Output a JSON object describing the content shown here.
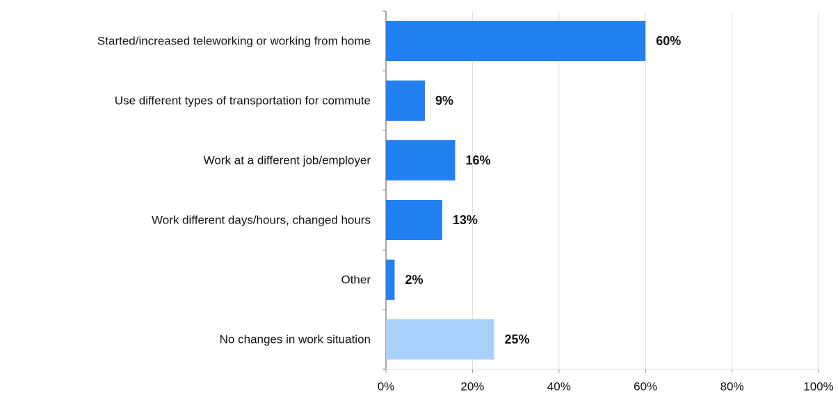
{
  "chart_data": {
    "type": "hbar",
    "categories": [
      "Started/increased teleworking or working from home",
      "Use different types of transportation for commute",
      "Work at a different job/employer",
      "Work different days/hours, changed hours",
      "Other",
      "No changes in work situation"
    ],
    "values": [
      60,
      9,
      16,
      13,
      2,
      25
    ],
    "value_labels": [
      "60%",
      "9%",
      "16%",
      "13%",
      "2%",
      "25%"
    ],
    "colors": [
      "#2280f0",
      "#2280f0",
      "#2280f0",
      "#2280f0",
      "#2280f0",
      "#aad1fc"
    ],
    "xlim": [
      0,
      100
    ],
    "xticks": [
      {
        "value": 0,
        "label": "0%"
      },
      {
        "value": 20,
        "label": "20%"
      },
      {
        "value": 40,
        "label": "40%"
      },
      {
        "value": 60,
        "label": "60%"
      },
      {
        "value": 80,
        "label": "80%"
      },
      {
        "value": 100,
        "label": "100%"
      }
    ],
    "grid": true
  }
}
